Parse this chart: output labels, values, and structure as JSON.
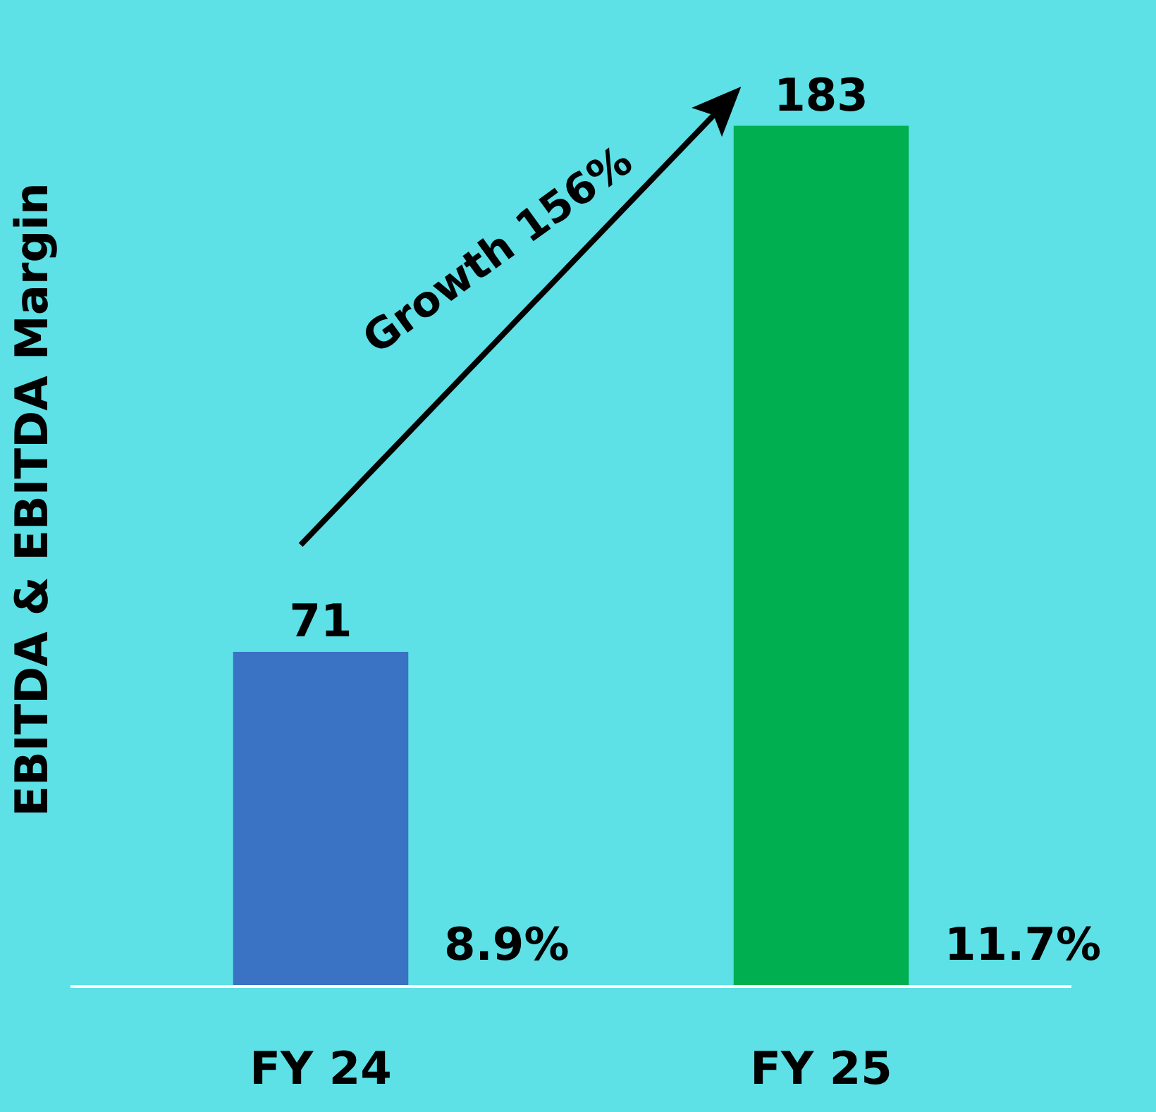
{
  "chart_data": {
    "type": "bar",
    "ylabel": "EBITDA & EBITDA Margin",
    "categories": [
      "FY 24",
      "FY 25"
    ],
    "values": [
      71,
      183
    ],
    "colors": [
      "#3a72c4",
      "#00b050"
    ],
    "data_labels": true,
    "grid": false,
    "legend": false,
    "tick_labels": "x",
    "annotations": [
      "8.9%",
      "11.7%",
      "Growth 156%"
    ]
  }
}
